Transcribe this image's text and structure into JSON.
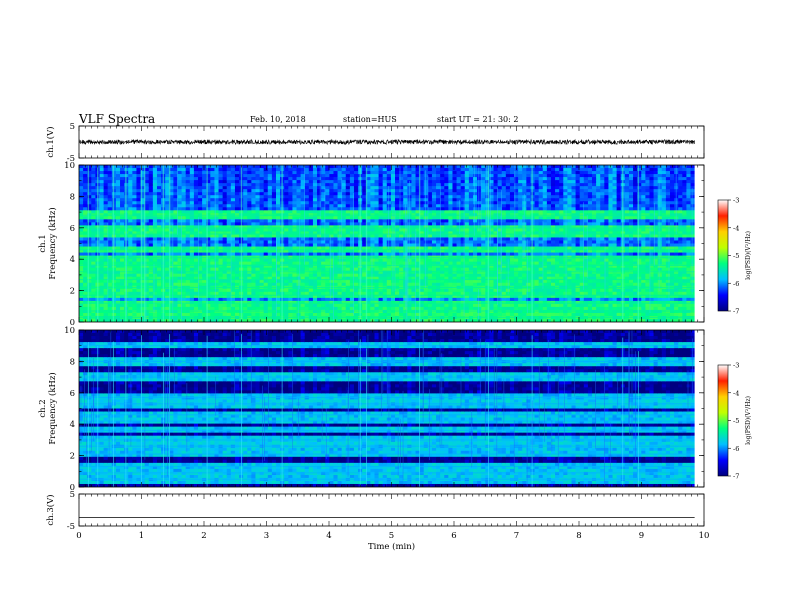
{
  "header": {
    "title": "VLF Spectra",
    "date": "Feb. 10, 2018",
    "station": "station=HUS",
    "start": "start  UT  =    21: 30: 2"
  },
  "chart_data": [
    {
      "type": "line",
      "panel": "ch1-waveform",
      "ylabel": "ch.1(V)",
      "ylim": [
        -5,
        5
      ],
      "yticks": [
        "5",
        "-5"
      ],
      "x_range": [
        0,
        9.85
      ],
      "mean_value": 0,
      "color": "#000000"
    },
    {
      "type": "heatmap",
      "panel": "ch1-spectrogram",
      "ylabel": "ch.1\nFrequency (kHz)",
      "ylim": [
        0,
        10
      ],
      "yticks": [
        "0",
        "2",
        "4",
        "6",
        "8",
        "10"
      ],
      "x_range": [
        0,
        9.85
      ],
      "background_level": -6.2,
      "bands_khz": [
        0.3,
        0.7,
        1.2,
        1.7,
        2.2,
        2.7,
        3.2,
        3.6,
        4.1,
        4.6,
        5.6,
        6.0,
        6.8
      ],
      "band_level": -5.3,
      "impulse_times_min": [
        0.15,
        0.3,
        0.55,
        0.75,
        1.0,
        1.05,
        1.35,
        1.45,
        2.05,
        2.6,
        3.25,
        4.5,
        4.6,
        5.45,
        6.55,
        7.25,
        8.7,
        8.95
      ]
    },
    {
      "type": "heatmap",
      "panel": "ch2-spectrogram",
      "ylabel": "ch.2\nFrequency (kHz)",
      "ylim": [
        0,
        10
      ],
      "yticks": [
        "0",
        "2",
        "4",
        "6",
        "8",
        "10"
      ],
      "x_range": [
        0,
        9.85
      ],
      "background_level": -6.9,
      "bands_khz": [
        0.5,
        0.9,
        1.3,
        2.1,
        2.6,
        3.0,
        3.6,
        4.2,
        4.6,
        5.3,
        5.7,
        7.0,
        8.0,
        9.0
      ],
      "band_level": -5.8,
      "impulse_times_min": [
        0.15,
        0.3,
        0.55,
        0.75,
        1.0,
        1.35,
        1.45,
        2.05,
        2.6,
        3.25,
        4.5,
        4.6,
        5.45,
        6.55,
        7.25,
        8.7,
        8.95
      ]
    },
    {
      "type": "line",
      "panel": "ch3-waveform",
      "ylabel": "ch.3(V)",
      "ylim": [
        -5,
        5
      ],
      "yticks": [
        "5",
        "-5"
      ],
      "x_range": [
        0,
        9.85
      ],
      "mean_value": -2.3,
      "color": "#000000"
    }
  ],
  "xaxis": {
    "label": "Time  (min)",
    "xlim": [
      0,
      10
    ],
    "ticks": [
      "0",
      "1",
      "2",
      "3",
      "4",
      "5",
      "6",
      "7",
      "8",
      "9",
      "10"
    ]
  },
  "colorbars": [
    {
      "panel": "ch1-spectrogram",
      "label": "log(PSD)(V²/Hz)",
      "range": [
        -7,
        -3
      ],
      "ticks": [
        "-3",
        "-4",
        "-5",
        "-6",
        "-7"
      ],
      "colormap": [
        "#00007f",
        "#0000ff",
        "#00c0ff",
        "#00ff80",
        "#c0ff00",
        "#ffd000",
        "#ff2000",
        "#ffffff"
      ]
    },
    {
      "panel": "ch2-spectrogram",
      "label": "log(PSD)(V²/Hz)",
      "range": [
        -7,
        -3
      ],
      "ticks": [
        "-3",
        "-4",
        "-5",
        "-6",
        "-7"
      ],
      "colormap": [
        "#00007f",
        "#0000ff",
        "#00c0ff",
        "#00ff80",
        "#c0ff00",
        "#ffd000",
        "#ff2000",
        "#ffffff"
      ]
    }
  ]
}
